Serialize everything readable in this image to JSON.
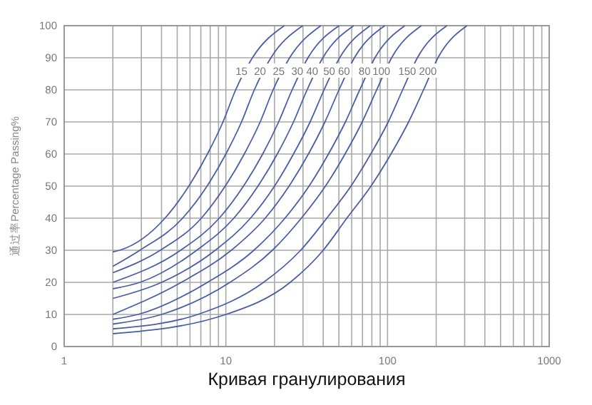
{
  "chart_data": {
    "type": "line",
    "xlabel": "Кривая гранулирования",
    "ylabel": "通过率Percentage Passing%",
    "log": "x",
    "grid": true,
    "marker": "none",
    "line_style": "solid",
    "xlim": [
      1,
      1000
    ],
    "ylim": [
      0,
      100
    ],
    "xticks": [
      1,
      {
        "value": 2,
        "label": null
      },
      {
        "value": 3,
        "label": null
      },
      {
        "value": 4,
        "label": null
      },
      {
        "value": 5,
        "label": null
      },
      {
        "value": 6,
        "label": null
      },
      {
        "value": 7,
        "label": null
      },
      {
        "value": 8,
        "label": null
      },
      {
        "value": 9,
        "label": null
      },
      10,
      {
        "value": 20,
        "label": null
      },
      {
        "value": 30,
        "label": null
      },
      {
        "value": 40,
        "label": null
      },
      {
        "value": 50,
        "label": null
      },
      {
        "value": 60,
        "label": null
      },
      {
        "value": 70,
        "label": null
      },
      {
        "value": 80,
        "label": null
      },
      {
        "value": 90,
        "label": null
      },
      100,
      {
        "value": 200,
        "label": null
      },
      {
        "value": 300,
        "label": null
      },
      {
        "value": 400,
        "label": null
      },
      {
        "value": 500,
        "label": null
      },
      {
        "value": 600,
        "label": null
      },
      {
        "value": 700,
        "label": null
      },
      {
        "value": 800,
        "label": null
      },
      {
        "value": 900,
        "label": null
      },
      1000
    ],
    "yticks": [
      0,
      10,
      20,
      30,
      40,
      50,
      60,
      70,
      80,
      90,
      100
    ],
    "series": [
      {
        "name": "15",
        "color": "#4a5ea8",
        "x": [
          2,
          2.2,
          4.2,
          5.9,
          7.69,
          9.6,
          11.5,
          14.6,
          23
        ],
        "values": [
          29.5,
          30,
          40,
          50,
          60,
          70,
          80,
          90,
          100
        ]
      },
      {
        "name": "20",
        "color": "#4a5ea8",
        "x": [
          2,
          2.94,
          5.4,
          7.65,
          10,
          12.5,
          15,
          19,
          29.9
        ],
        "values": [
          25,
          30,
          40,
          50,
          60,
          70,
          80,
          90,
          100
        ]
      },
      {
        "name": "25",
        "color": "#4a5ea8",
        "x": [
          2,
          3.93,
          7.05,
          9.91,
          13,
          16.3,
          19.6,
          24.8,
          38.7
        ],
        "values": [
          23,
          30,
          40,
          50,
          60,
          70,
          80,
          90,
          100
        ]
      },
      {
        "name": "30",
        "color": "#4a5ea8",
        "x": [
          2,
          5.25,
          9.1,
          12.85,
          16.9,
          21.2,
          25.7,
          32.2,
          50.2
        ],
        "values": [
          20,
          30,
          40,
          50,
          60,
          70,
          80,
          90,
          100
        ]
      },
      {
        "name": "40",
        "color": "#4a5ea8",
        "x": [
          2,
          2.94,
          6.6,
          11.2,
          15.8,
          20.8,
          26.2,
          31.8,
          39.8,
          61.8
        ],
        "values": [
          18,
          20,
          30,
          40,
          50,
          60,
          70,
          80,
          90,
          100
        ]
      },
      {
        "name": "50",
        "color": "#4a5ea8",
        "x": [
          2,
          4,
          8.6,
          14.2,
          20,
          26.2,
          33.2,
          40.5,
          50.6,
          78.2
        ],
        "values": [
          15,
          20,
          30,
          40,
          50,
          60,
          70,
          80,
          90,
          100
        ]
      },
      {
        "name": "60",
        "color": "#4a5ea8",
        "x": [
          2,
          5.3,
          10.8,
          17.5,
          24.6,
          32.4,
          41,
          50.1,
          62.4,
          96.2
        ],
        "values": [
          10,
          20,
          30,
          40,
          50,
          60,
          70,
          80,
          90,
          100
        ]
      },
      {
        "name": "80",
        "color": "#4a5ea8",
        "x": [
          2,
          2.86,
          7.7,
          14.9,
          23.2,
          32.7,
          43.1,
          54.9,
          67.3,
          83.6,
          128
        ],
        "values": [
          8.5,
          10,
          20,
          30,
          40,
          50,
          60,
          70,
          80,
          90,
          100
        ]
      },
      {
        "name": "100",
        "color": "#4a5ea8",
        "x": [
          2,
          4,
          10.6,
          19.4,
          29.3,
          41.3,
          54.6,
          69.7,
          85.7,
          106,
          162
        ],
        "values": [
          7,
          10,
          20,
          30,
          40,
          50,
          60,
          70,
          80,
          90,
          100
        ]
      },
      {
        "name": "150",
        "color": "#4a5ea8",
        "x": [
          2,
          6.7,
          17.1,
          29,
          42.1,
          59.4,
          78.7,
          101,
          124,
          153,
          233
        ],
        "values": [
          5.5,
          10,
          20,
          30,
          40,
          50,
          60,
          70,
          80,
          90,
          100
        ]
      },
      {
        "name": "200",
        "color": "#4a5ea8",
        "x": [
          2,
          10,
          25,
          40,
          56,
          79,
          105,
          135,
          167,
          205,
          310
        ],
        "values": [
          4,
          10,
          20,
          30,
          40,
          50,
          60,
          70,
          80,
          90,
          100
        ]
      }
    ]
  }
}
